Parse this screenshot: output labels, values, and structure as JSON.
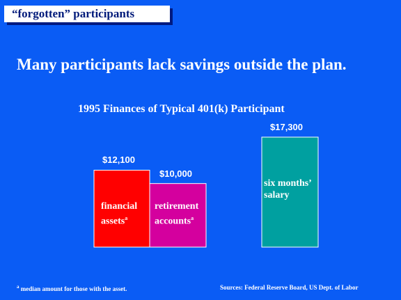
{
  "header": {
    "title_tag": "“forgotten” participants"
  },
  "headline": "Many participants lack savings outside the plan.",
  "chart_data": {
    "type": "bar",
    "title": "1995 Finances of Typical 401(k) Participant",
    "categories": [
      "financial assets",
      "retirement accounts",
      "six months’ salary"
    ],
    "values": [
      12100,
      10000,
      17300
    ],
    "value_labels": [
      "$12,100",
      "$10,000",
      "$17,300"
    ],
    "bar_text": [
      {
        "line1": "financial",
        "line2": "assets",
        "note": "a"
      },
      {
        "line1": "retirement",
        "line2": "accounts",
        "note": "a"
      },
      {
        "line1": "six months’",
        "line2": "salary",
        "note": ""
      }
    ],
    "colors": [
      "#ff0000",
      "#d4009e",
      "#00a0a0"
    ],
    "xlabel": "",
    "ylabel": "",
    "grid": false
  },
  "footer": {
    "footnote_mark": "a",
    "footnote_text": "median amount for those with the asset.",
    "sources": "Sources:  Federal Reserve Board, US Dept. of Labor"
  }
}
